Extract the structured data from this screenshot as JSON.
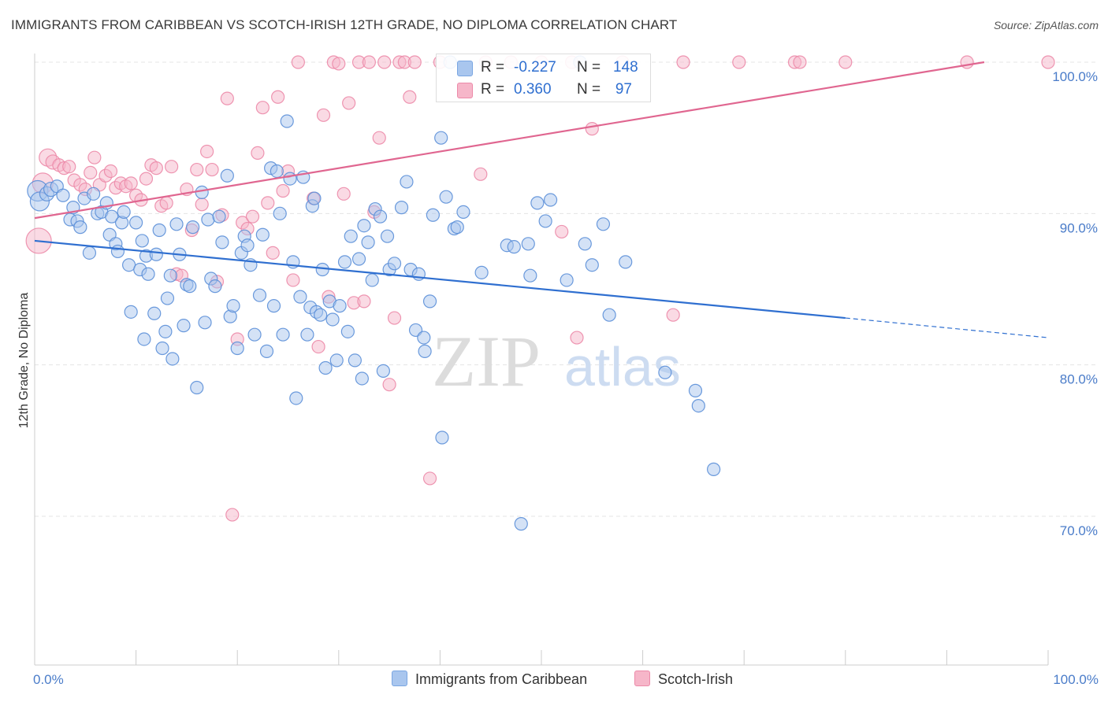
{
  "title": "IMMIGRANTS FROM CARIBBEAN VS SCOTCH-IRISH 12TH GRADE, NO DIPLOMA CORRELATION CHART",
  "source": "Source: ZipAtlas.com",
  "watermark": {
    "zip": "ZIP",
    "atlas": "atlas"
  },
  "legend": {
    "r_label": "R =",
    "n_label": "N =",
    "items": [
      {
        "name": "Immigrants from Caribbean",
        "r": "-0.227",
        "n": "148",
        "color": "#a9c6ee"
      },
      {
        "name": "Scotch-Irish",
        "r": "0.360",
        "n": "97",
        "color": "#f6b6c9"
      }
    ]
  },
  "chart_data": {
    "type": "scatter",
    "title": "IMMIGRANTS FROM CARIBBEAN VS SCOTCH-IRISH 12TH GRADE, NO DIPLOMA CORRELATION CHART",
    "xlabel": "",
    "ylabel": "12th Grade, No Diploma",
    "xlim": [
      0,
      100
    ],
    "ylim": [
      60,
      101.5
    ],
    "x_tick_labels": [
      "0.0%",
      "100.0%"
    ],
    "y_ticks": [
      {
        "value": 100,
        "label": "100.0%"
      },
      {
        "value": 90,
        "label": "90.0%"
      },
      {
        "value": 80,
        "label": "80.0%"
      },
      {
        "value": 70,
        "label": "70.0%"
      }
    ],
    "grid": "horizontal dashed",
    "legend_position": "top-center",
    "series": [
      {
        "name": "Immigrants from Caribbean",
        "color": "#5b8fd8",
        "fill": "#a9c6ee",
        "trendline": {
          "x": [
            0,
            80
          ],
          "y": [
            88.2,
            83.1
          ],
          "dashed_to": [
            100,
            81.8
          ],
          "color": "#2f6fd0"
        },
        "points": [
          [
            0.3,
            91.5,
            13
          ],
          [
            0.5,
            90.8,
            12
          ],
          [
            1.2,
            91.3,
            9
          ],
          [
            1.6,
            91.6,
            9
          ],
          [
            2.2,
            91.8,
            8
          ],
          [
            2.8,
            91.2,
            8
          ],
          [
            3.5,
            89.6,
            8
          ],
          [
            3.8,
            90.4,
            8
          ],
          [
            4.2,
            89.5,
            8
          ],
          [
            4.5,
            89.1,
            8
          ],
          [
            4.9,
            91.0,
            8
          ],
          [
            5.4,
            87.4,
            8
          ],
          [
            5.8,
            91.3,
            8
          ],
          [
            6.2,
            90.0,
            8
          ],
          [
            6.6,
            90.1,
            8
          ],
          [
            7.1,
            90.7,
            8
          ],
          [
            7.6,
            89.8,
            8
          ],
          [
            7.4,
            88.6,
            8
          ],
          [
            8.0,
            88.0,
            8
          ],
          [
            8.2,
            87.5,
            8
          ],
          [
            8.6,
            89.4,
            8
          ],
          [
            8.8,
            90.1,
            8
          ],
          [
            9.3,
            86.6,
            8
          ],
          [
            9.5,
            83.5,
            8
          ],
          [
            10.0,
            89.4,
            8
          ],
          [
            10.4,
            86.3,
            8
          ],
          [
            10.6,
            88.2,
            8
          ],
          [
            10.8,
            81.7,
            8
          ],
          [
            11.0,
            87.2,
            8
          ],
          [
            11.2,
            86.0,
            8
          ],
          [
            11.8,
            83.4,
            8
          ],
          [
            12.0,
            87.3,
            8
          ],
          [
            12.3,
            88.9,
            8
          ],
          [
            12.6,
            81.1,
            8
          ],
          [
            12.9,
            82.2,
            8
          ],
          [
            13.1,
            84.4,
            8
          ],
          [
            13.4,
            85.9,
            8
          ],
          [
            13.6,
            80.4,
            8
          ],
          [
            14.0,
            89.3,
            8
          ],
          [
            14.3,
            87.3,
            8
          ],
          [
            14.7,
            82.6,
            8
          ],
          [
            15.0,
            85.3,
            8
          ],
          [
            15.3,
            85.2,
            8
          ],
          [
            15.6,
            89.1,
            8
          ],
          [
            16.0,
            78.5,
            8
          ],
          [
            16.5,
            91.4,
            8
          ],
          [
            16.8,
            82.8,
            8
          ],
          [
            17.1,
            89.6,
            8
          ],
          [
            17.4,
            85.7,
            8
          ],
          [
            17.8,
            85.2,
            8
          ],
          [
            18.2,
            89.8,
            8
          ],
          [
            18.5,
            88.1,
            8
          ],
          [
            19.0,
            92.5,
            8
          ],
          [
            19.3,
            83.2,
            8
          ],
          [
            19.6,
            83.9,
            8
          ],
          [
            20.0,
            81.1,
            8
          ],
          [
            20.4,
            87.4,
            8
          ],
          [
            20.7,
            88.5,
            8
          ],
          [
            21.0,
            87.9,
            8
          ],
          [
            21.3,
            86.6,
            8
          ],
          [
            21.7,
            82.0,
            8
          ],
          [
            22.2,
            84.6,
            8
          ],
          [
            22.5,
            88.6,
            8
          ],
          [
            22.9,
            80.9,
            8
          ],
          [
            23.3,
            93.0,
            8
          ],
          [
            23.6,
            83.9,
            8
          ],
          [
            23.9,
            92.8,
            8
          ],
          [
            24.2,
            90.0,
            8
          ],
          [
            24.5,
            82.0,
            8
          ],
          [
            24.9,
            96.1,
            8
          ],
          [
            25.2,
            92.3,
            8
          ],
          [
            25.5,
            86.8,
            8
          ],
          [
            25.8,
            77.8,
            8
          ],
          [
            26.2,
            84.5,
            8
          ],
          [
            26.5,
            92.4,
            8
          ],
          [
            26.9,
            82.0,
            8
          ],
          [
            27.2,
            83.8,
            8
          ],
          [
            27.4,
            90.5,
            8
          ],
          [
            27.6,
            91.0,
            8
          ],
          [
            27.8,
            83.5,
            8
          ],
          [
            28.2,
            83.3,
            8
          ],
          [
            28.4,
            86.3,
            8
          ],
          [
            28.7,
            79.8,
            8
          ],
          [
            29.1,
            84.2,
            8
          ],
          [
            29.4,
            83.0,
            8
          ],
          [
            29.8,
            80.3,
            8
          ],
          [
            30.1,
            83.9,
            8
          ],
          [
            30.6,
            86.8,
            8
          ],
          [
            30.9,
            82.2,
            8
          ],
          [
            31.2,
            88.5,
            8
          ],
          [
            31.6,
            80.3,
            8
          ],
          [
            32.0,
            87.0,
            8
          ],
          [
            32.3,
            79.1,
            8
          ],
          [
            32.5,
            89.2,
            8
          ],
          [
            32.9,
            88.1,
            8
          ],
          [
            33.3,
            85.6,
            8
          ],
          [
            33.6,
            90.3,
            8
          ],
          [
            34.1,
            89.8,
            8
          ],
          [
            34.4,
            79.6,
            8
          ],
          [
            34.8,
            88.5,
            8
          ],
          [
            35.0,
            86.3,
            8
          ],
          [
            35.5,
            86.7,
            8
          ],
          [
            36.2,
            90.4,
            8
          ],
          [
            36.7,
            92.1,
            8
          ],
          [
            37.1,
            86.3,
            8
          ],
          [
            37.6,
            82.3,
            8
          ],
          [
            37.9,
            86.0,
            8
          ],
          [
            38.4,
            81.8,
            8
          ],
          [
            38.5,
            80.9,
            8
          ],
          [
            39.0,
            84.2,
            8
          ],
          [
            39.3,
            89.9,
            8
          ],
          [
            40.1,
            95.0,
            8
          ],
          [
            40.2,
            75.2,
            8
          ],
          [
            40.6,
            91.1,
            8
          ],
          [
            41.4,
            89.0,
            8
          ],
          [
            41.7,
            89.1,
            8
          ],
          [
            42.3,
            90.1,
            8
          ],
          [
            44.1,
            86.1,
            8
          ],
          [
            46.6,
            87.9,
            8
          ],
          [
            47.3,
            87.8,
            8
          ],
          [
            48.0,
            69.5,
            8
          ],
          [
            48.7,
            88.0,
            8
          ],
          [
            48.9,
            85.9,
            8
          ],
          [
            49.6,
            90.7,
            8
          ],
          [
            50.4,
            89.5,
            8
          ],
          [
            50.9,
            90.9,
            8
          ],
          [
            52.5,
            85.6,
            8
          ],
          [
            53.8,
            100.0,
            8
          ],
          [
            54.3,
            88.0,
            8
          ],
          [
            55.0,
            86.6,
            8
          ],
          [
            56.1,
            89.3,
            8
          ],
          [
            56.7,
            83.3,
            8
          ],
          [
            58.3,
            86.8,
            8
          ],
          [
            62.2,
            79.5,
            8
          ],
          [
            65.2,
            78.3,
            8
          ],
          [
            65.5,
            77.3,
            8
          ],
          [
            67.0,
            73.1,
            8
          ],
          [
            41.0,
            100.0,
            8
          ]
        ]
      },
      {
        "name": "Scotch-Irish",
        "color": "#ec8aa9",
        "fill": "#f6b6c9",
        "trendline": {
          "x": [
            0,
            93.7
          ],
          "y": [
            89.7,
            100.0
          ],
          "color": "#e06690"
        },
        "points": [
          [
            0.4,
            88.2,
            16
          ],
          [
            0.8,
            92.0,
            13
          ],
          [
            1.3,
            93.7,
            11
          ],
          [
            1.8,
            93.4,
            9
          ],
          [
            2.4,
            93.2,
            8
          ],
          [
            2.9,
            93.0,
            8
          ],
          [
            3.4,
            93.1,
            8
          ],
          [
            3.9,
            92.2,
            8
          ],
          [
            4.5,
            91.9,
            8
          ],
          [
            5.0,
            91.6,
            8
          ],
          [
            5.5,
            92.7,
            8
          ],
          [
            5.9,
            93.7,
            8
          ],
          [
            6.4,
            91.9,
            8
          ],
          [
            7.0,
            92.5,
            8
          ],
          [
            7.5,
            92.8,
            8
          ],
          [
            8.0,
            91.7,
            8
          ],
          [
            8.5,
            92.0,
            8
          ],
          [
            9.0,
            91.8,
            8
          ],
          [
            9.5,
            92.0,
            8
          ],
          [
            10.0,
            91.2,
            8
          ],
          [
            10.5,
            90.9,
            8
          ],
          [
            11.0,
            92.3,
            8
          ],
          [
            11.5,
            93.2,
            8
          ],
          [
            12.0,
            93.0,
            8
          ],
          [
            12.5,
            90.5,
            8
          ],
          [
            13.0,
            90.7,
            8
          ],
          [
            13.5,
            93.1,
            8
          ],
          [
            14.0,
            86.0,
            8
          ],
          [
            14.5,
            85.9,
            8
          ],
          [
            15.0,
            91.6,
            8
          ],
          [
            15.5,
            88.9,
            8
          ],
          [
            16.0,
            92.9,
            8
          ],
          [
            16.5,
            90.6,
            8
          ],
          [
            17.0,
            94.1,
            8
          ],
          [
            17.5,
            92.9,
            8
          ],
          [
            18.0,
            85.5,
            8
          ],
          [
            18.5,
            89.9,
            8
          ],
          [
            19.0,
            97.6,
            8
          ],
          [
            19.5,
            70.1,
            8
          ],
          [
            20.0,
            81.7,
            8
          ],
          [
            20.5,
            89.4,
            8
          ],
          [
            21.0,
            89.0,
            8
          ],
          [
            21.5,
            89.8,
            8
          ],
          [
            22.0,
            94.0,
            8
          ],
          [
            22.5,
            97.0,
            8
          ],
          [
            23.0,
            90.7,
            8
          ],
          [
            23.5,
            87.4,
            8
          ],
          [
            24.0,
            97.7,
            8
          ],
          [
            24.5,
            91.5,
            8
          ],
          [
            25.0,
            92.8,
            8
          ],
          [
            25.5,
            85.6,
            8
          ],
          [
            26.0,
            100.0,
            8
          ],
          [
            27.5,
            91.0,
            8
          ],
          [
            28.0,
            81.2,
            8
          ],
          [
            28.5,
            96.5,
            8
          ],
          [
            29.0,
            84.5,
            8
          ],
          [
            29.5,
            100.0,
            8
          ],
          [
            30.0,
            99.9,
            8
          ],
          [
            30.5,
            91.3,
            8
          ],
          [
            31.0,
            97.3,
            8
          ],
          [
            31.5,
            84.1,
            8
          ],
          [
            32.0,
            100.0,
            8
          ],
          [
            32.5,
            84.2,
            8
          ],
          [
            33.0,
            100.0,
            8
          ],
          [
            33.5,
            90.1,
            8
          ],
          [
            34.0,
            95.0,
            8
          ],
          [
            34.5,
            100.0,
            8
          ],
          [
            35.0,
            78.7,
            8
          ],
          [
            35.5,
            83.1,
            8
          ],
          [
            36.0,
            100.0,
            8
          ],
          [
            36.5,
            100.0,
            8
          ],
          [
            37.0,
            97.7,
            8
          ],
          [
            37.5,
            100.0,
            8
          ],
          [
            39.0,
            72.5,
            8
          ],
          [
            40.0,
            100.0,
            8
          ],
          [
            44.0,
            92.6,
            8
          ],
          [
            44.5,
            100.0,
            8
          ],
          [
            47.0,
            100.0,
            8
          ],
          [
            50.0,
            100.0,
            8
          ],
          [
            52.0,
            88.8,
            8
          ],
          [
            53.0,
            100.0,
            8
          ],
          [
            53.5,
            81.8,
            8
          ],
          [
            55.0,
            95.6,
            8
          ],
          [
            58.0,
            100.0,
            8
          ],
          [
            63.0,
            83.3,
            8
          ],
          [
            64.0,
            100.0,
            8
          ],
          [
            69.5,
            100.0,
            8
          ],
          [
            75.0,
            100.0,
            8
          ],
          [
            75.5,
            100.0,
            8
          ],
          [
            80.0,
            100.0,
            8
          ],
          [
            92.0,
            100.0,
            8
          ],
          [
            100.0,
            100.0,
            8
          ]
        ]
      }
    ]
  }
}
